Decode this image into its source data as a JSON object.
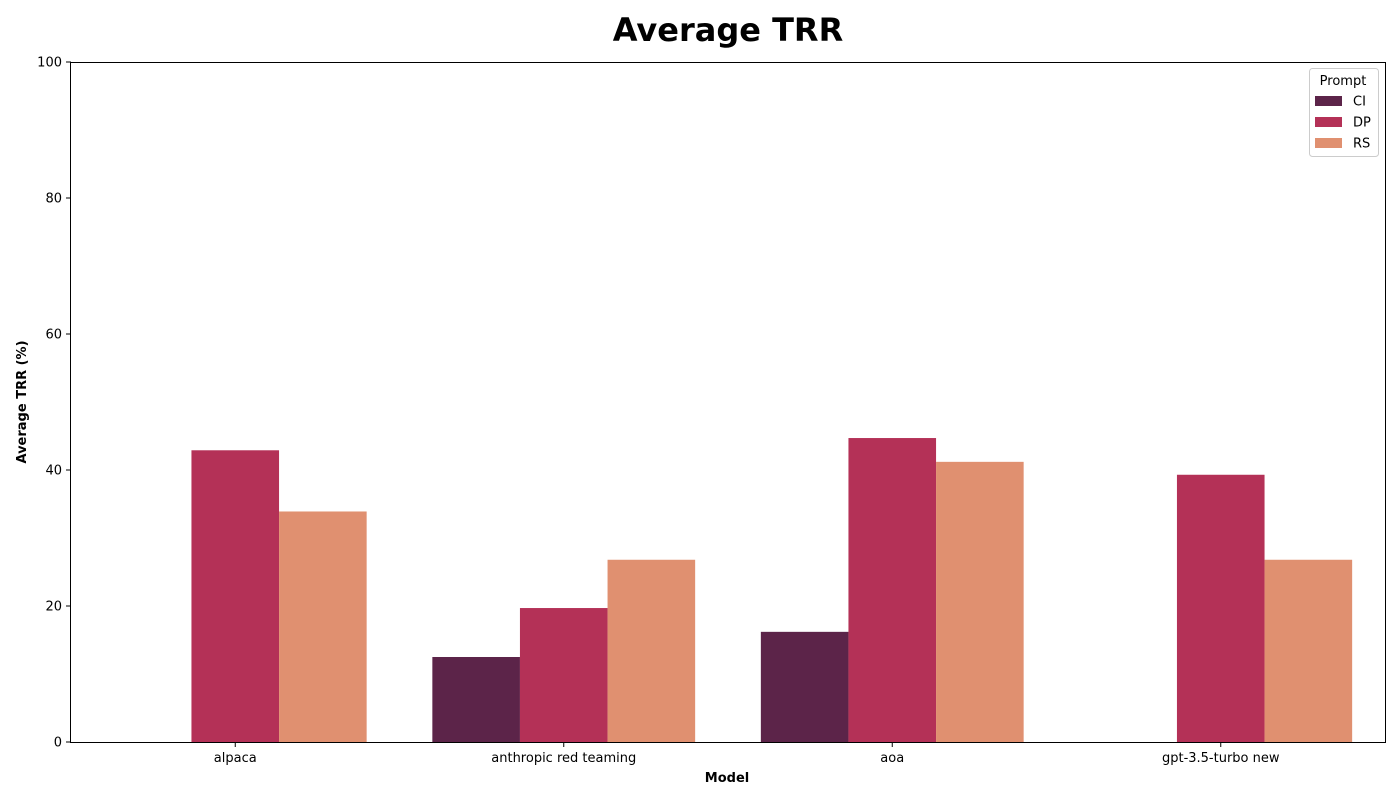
{
  "chart_data": {
    "type": "bar",
    "title": "Average TRR",
    "xlabel": "Model",
    "ylabel": "Average TRR (%)",
    "ylim": [
      0,
      100
    ],
    "yticks": [
      0,
      20,
      40,
      60,
      80,
      100
    ],
    "categories": [
      "alpaca",
      "anthropic red teaming",
      "aoa",
      "gpt-3.5-turbo new"
    ],
    "series": [
      {
        "name": "CI",
        "color": "#5c2449",
        "values": [
          null,
          12.5,
          16.2,
          null
        ]
      },
      {
        "name": "DP",
        "color": "#b43157",
        "values": [
          42.9,
          19.7,
          44.7,
          39.3
        ]
      },
      {
        "name": "RS",
        "color": "#e09070",
        "values": [
          33.9,
          26.8,
          41.2,
          26.8
        ]
      }
    ],
    "legend": {
      "title": "Prompt",
      "position": "top-right"
    },
    "grid": false
  }
}
